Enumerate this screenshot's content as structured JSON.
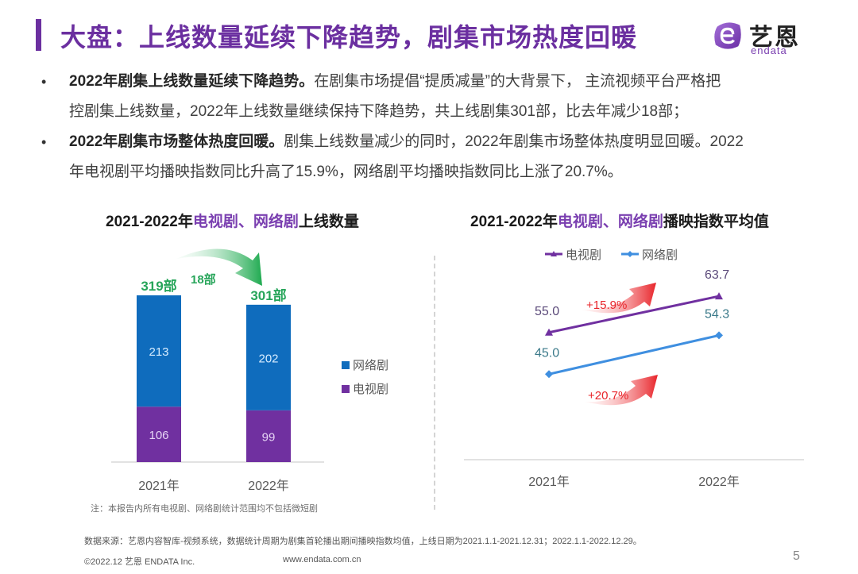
{
  "header": {
    "title": "大盘：上线数量延续下降趋势，剧集市场热度回暖",
    "logo_cn": "艺恩",
    "logo_en": "endata",
    "brand_color": "#6b2fa0"
  },
  "bullets": [
    {
      "bold": "2022年剧集上线数量延续下降趋势。",
      "text_line1": "在剧集市场提倡“提质减量”的大背景下， 主流视频平台严格把",
      "text_line2": "控剧集上线数量，2022年上线数量继续保持下降趋势，共上线剧集301部，比去年减少18部；"
    },
    {
      "bold": "2022年剧集市场整体热度回暖。",
      "text_line1": "剧集上线数量减少的同时，2022年剧集市场整体热度明显回暖。2022",
      "text_line2": "年电视剧平均播映指数同比升高了15.9%，网络剧平均播映指数同比上涨了20.7%。"
    }
  ],
  "chart_data": [
    {
      "type": "bar",
      "stacked": true,
      "title_prefix": "2021-2022年",
      "title_highlight": "电视剧、网络剧",
      "title_suffix": "上线数量",
      "categories": [
        "2021年",
        "2022年"
      ],
      "series": [
        {
          "name": "电视剧",
          "values": [
            106,
            99
          ],
          "color": "#7030a0"
        },
        {
          "name": "网络剧",
          "values": [
            213,
            202
          ],
          "color": "#0f6cbd"
        }
      ],
      "totals": [
        "319部",
        "301部"
      ],
      "total_color": "#27a55a",
      "annotation": "18部",
      "legend": [
        "网络剧",
        "电视剧"
      ],
      "legend_position": "right",
      "ylim": [
        0,
        319
      ],
      "grid": false
    },
    {
      "type": "line",
      "title_prefix": "2021-2022年",
      "title_highlight": "电视剧、网络剧",
      "title_suffix": "播映指数平均值",
      "categories": [
        "2021年",
        "2022年"
      ],
      "series": [
        {
          "name": "电视剧",
          "values": [
            55.0,
            63.7
          ],
          "labels": [
            "55.0",
            "63.7"
          ],
          "color": "#7030a0",
          "marker": "triangle"
        },
        {
          "name": "网络剧",
          "values": [
            45.0,
            54.3
          ],
          "labels": [
            "45.0",
            "54.3"
          ],
          "color": "#3f8fe0",
          "marker": "diamond"
        }
      ],
      "annotations": [
        "+15.9%",
        "+20.7%"
      ],
      "annotation_color": "#e8242a",
      "legend_position": "top",
      "ylim": [
        30,
        70
      ],
      "grid": false
    }
  ],
  "footer": {
    "note": "注：本报告内所有电视剧、网络剧统计范围均不包括微短剧",
    "source": "数据来源：艺恩内容智库-视频系统，数据统计周期为剧集首轮播出期间播映指数均值，上线日期为2021.1.1-2021.12.31；2022.1.1-2022.12.29。",
    "copyright": "©2022.12 艺恩 ENDATA Inc.",
    "website": "www.endata.com.cn",
    "page_number": "5"
  }
}
